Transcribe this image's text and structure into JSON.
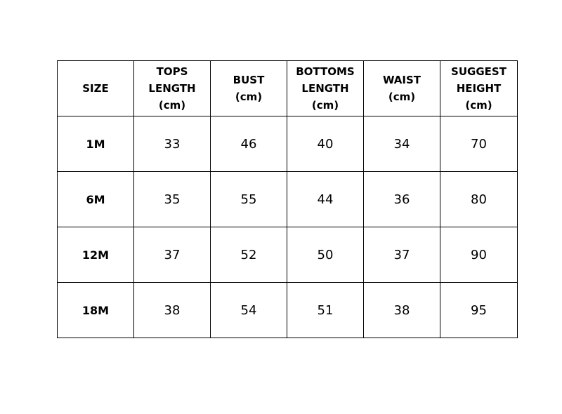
{
  "headers": [
    {
      "lines": [
        "SIZE"
      ]
    },
    {
      "lines": [
        "TOPS",
        "LENGTH",
        "(cm)"
      ]
    },
    {
      "lines": [
        "BUST",
        "(cm)"
      ]
    },
    {
      "lines": [
        "BOTTOMS",
        "LENGTH",
        "(cm)"
      ]
    },
    {
      "lines": [
        "WAIST",
        "(cm)"
      ]
    },
    {
      "lines": [
        "SUGGEST",
        "HEIGHT",
        "(cm)"
      ]
    }
  ],
  "rows": [
    {
      "size": "1M",
      "tops_length": "33",
      "bust": "46",
      "bottoms_length": "40",
      "waist": "34",
      "suggest_height": "70"
    },
    {
      "size": "6M",
      "tops_length": "35",
      "bust": "55",
      "bottoms_length": "44",
      "waist": "36",
      "suggest_height": "80"
    },
    {
      "size": "12M",
      "tops_length": "37",
      "bust": "52",
      "bottoms_length": "50",
      "waist": "37",
      "suggest_height": "90"
    },
    {
      "size": "18M",
      "tops_length": "38",
      "bust": "54",
      "bottoms_length": "51",
      "waist": "38",
      "suggest_height": "95"
    }
  ]
}
